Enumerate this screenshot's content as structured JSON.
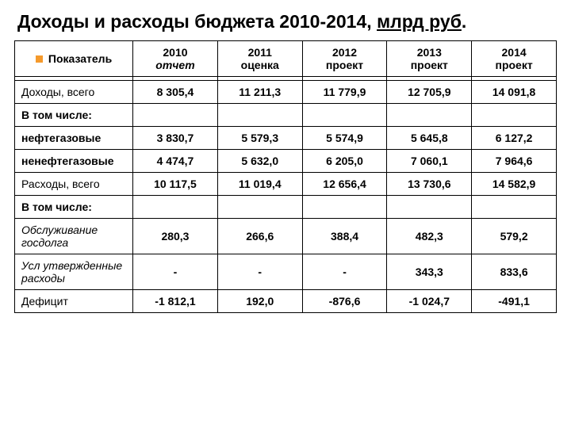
{
  "title_a": "Доходы и расходы бюджета 2010-2014, ",
  "title_b": "млрд руб",
  "title_c": ".",
  "header": {
    "c0": "Показатель",
    "c1a": "2010",
    "c1b": "отчет",
    "c2a": "2011",
    "c2b": "оценка",
    "c3a": "2012",
    "c3b": "проект",
    "c4a": "2013",
    "c4b": "проект",
    "c5a": "2014",
    "c5b": "проект"
  },
  "r1": {
    "l": "Доходы, всего",
    "v": [
      "8 305,4",
      "11 211,3",
      "11 779,9",
      "12 705,9",
      "14 091,8"
    ]
  },
  "r2": {
    "l": "В том числе:"
  },
  "r3": {
    "l": "нефтегазовые",
    "v": [
      "3 830,7",
      "5 579,3",
      "5 574,9",
      "5 645,8",
      "6 127,2"
    ]
  },
  "r4": {
    "l": "ненефтегазовые",
    "v": [
      "4 474,7",
      "5 632,0",
      "6 205,0",
      "7 060,1",
      "7 964,6"
    ]
  },
  "r5": {
    "l": "Расходы, всего",
    "v": [
      "10 117,5",
      "11 019,4",
      "12 656,4",
      "13 730,6",
      "14 582,9"
    ]
  },
  "r6": {
    "l": "В том числе:"
  },
  "r7": {
    "l": "Обслуживание госдолга",
    "v": [
      "280,3",
      "266,6",
      "388,4",
      "482,3",
      "579,2"
    ]
  },
  "r8": {
    "l": "Усл утвержденные расходы",
    "v": [
      "-",
      "-",
      "-",
      "343,3",
      "833,6"
    ]
  },
  "r9": {
    "l": "Дефицит",
    "v": [
      "-1 812,1",
      "192,0",
      "-876,6",
      "-1 024,7",
      "-491,1"
    ]
  }
}
